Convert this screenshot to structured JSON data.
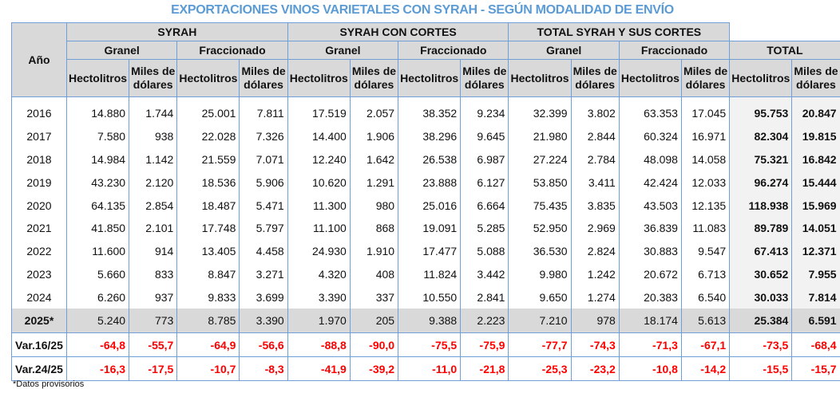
{
  "title": "EXPORTACIONES VINOS VARIETALES CON SYRAH - SEGÚN MODALIDAD DE ENVÍO",
  "headers": {
    "year": "Año",
    "groups": [
      "SYRAH",
      "SYRAH CON CORTES",
      "TOTAL SYRAH Y SUS CORTES"
    ],
    "sub": [
      "Granel",
      "Fraccionado",
      "Granel",
      "Fraccionado",
      "Granel",
      "Fraccionado",
      "TOTAL"
    ],
    "hl": "Hectolitros",
    "usd1": "Miles de",
    "usd2": "dólares"
  },
  "rows": [
    {
      "y": "2016",
      "v": [
        "14.880",
        "1.744",
        "25.001",
        "7.811",
        "17.519",
        "2.057",
        "38.352",
        "9.234",
        "32.399",
        "3.802",
        "63.353",
        "17.045",
        "95.753",
        "20.847"
      ]
    },
    {
      "y": "2017",
      "v": [
        "7.580",
        "938",
        "22.028",
        "7.326",
        "14.400",
        "1.906",
        "38.296",
        "9.645",
        "21.980",
        "2.844",
        "60.324",
        "16.971",
        "82.304",
        "19.815"
      ]
    },
    {
      "y": "2018",
      "v": [
        "14.984",
        "1.142",
        "21.559",
        "7.071",
        "12.240",
        "1.642",
        "26.538",
        "6.987",
        "27.224",
        "2.784",
        "48.098",
        "14.058",
        "75.321",
        "16.842"
      ]
    },
    {
      "y": "2019",
      "v": [
        "43.230",
        "2.120",
        "18.536",
        "5.906",
        "10.620",
        "1.291",
        "23.888",
        "6.127",
        "53.850",
        "3.411",
        "42.424",
        "12.033",
        "96.274",
        "15.444"
      ]
    },
    {
      "y": "2020",
      "v": [
        "64.135",
        "2.854",
        "18.487",
        "5.471",
        "11.300",
        "980",
        "25.016",
        "6.664",
        "75.435",
        "3.835",
        "43.503",
        "12.135",
        "118.938",
        "15.969"
      ]
    },
    {
      "y": "2021",
      "v": [
        "41.850",
        "2.101",
        "17.748",
        "5.797",
        "11.100",
        "868",
        "19.091",
        "5.285",
        "52.950",
        "2.969",
        "36.839",
        "11.083",
        "89.789",
        "14.051"
      ]
    },
    {
      "y": "2022",
      "v": [
        "11.600",
        "914",
        "13.405",
        "4.458",
        "24.930",
        "1.910",
        "17.477",
        "5.088",
        "36.530",
        "2.824",
        "30.883",
        "9.547",
        "67.413",
        "12.371"
      ]
    },
    {
      "y": "2023",
      "v": [
        "5.660",
        "833",
        "8.847",
        "3.271",
        "4.320",
        "408",
        "11.824",
        "3.442",
        "9.980",
        "1.242",
        "20.672",
        "6.713",
        "30.652",
        "7.955"
      ]
    },
    {
      "y": "2024",
      "v": [
        "6.260",
        "937",
        "9.833",
        "3.699",
        "3.390",
        "337",
        "10.550",
        "2.841",
        "9.650",
        "1.274",
        "20.383",
        "6.540",
        "30.033",
        "7.814"
      ]
    },
    {
      "y": "2025*",
      "v": [
        "5.240",
        "773",
        "8.785",
        "3.390",
        "1.970",
        "205",
        "9.388",
        "2.223",
        "7.210",
        "978",
        "18.174",
        "5.613",
        "25.384",
        "6.591"
      ]
    }
  ],
  "vars": [
    {
      "y": "Var.16/25",
      "v": [
        "-64,8",
        "-55,7",
        "-64,9",
        "-56,6",
        "-88,8",
        "-90,0",
        "-75,5",
        "-75,9",
        "-77,7",
        "-74,3",
        "-71,3",
        "-67,1",
        "-73,5",
        "-68,4"
      ]
    },
    {
      "y": "Var.24/25",
      "v": [
        "-16,3",
        "-17,5",
        "-10,7",
        "-8,3",
        "-41,9",
        "-39,2",
        "-11,0",
        "-21,8",
        "-25,3",
        "-23,2",
        "-10,8",
        "-14,2",
        "-15,5",
        "-15,7"
      ]
    }
  ],
  "footnote": "*Datos provisorios"
}
